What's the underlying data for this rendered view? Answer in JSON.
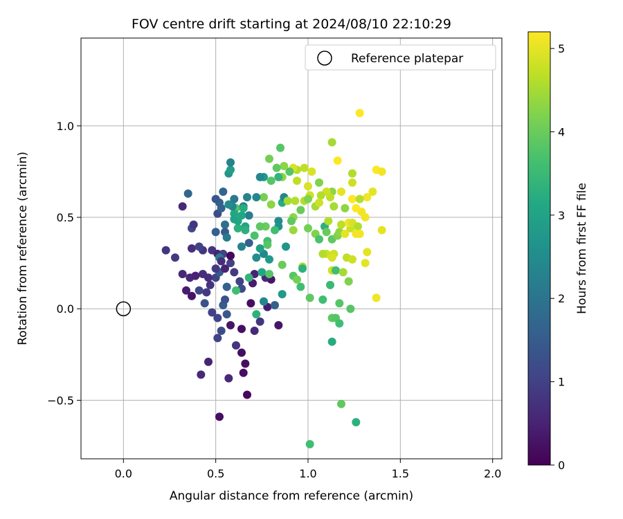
{
  "chart_data": {
    "type": "scatter",
    "title": "FOV centre drift starting at 2024/08/10 22:10:29",
    "xlabel": "Angular distance from reference (arcmin)",
    "ylabel": "Rotation from reference (arcmin)",
    "xlim": [
      -0.23,
      2.05
    ],
    "ylim": [
      -0.82,
      1.48
    ],
    "xticks": [
      0.0,
      0.5,
      1.0,
      1.5,
      2.0
    ],
    "xtick_labels": [
      "0.0",
      "0.5",
      "1.0",
      "1.5",
      "2.0"
    ],
    "yticks": [
      -0.5,
      0.0,
      0.5,
      1.0
    ],
    "ytick_labels": [
      "−0.5",
      "0.0",
      "0.5",
      "1.0"
    ],
    "grid": true,
    "legend": {
      "position": "top-right",
      "entries": [
        "Reference platepar"
      ]
    },
    "reference_point": {
      "name": "Reference platepar",
      "x": 0.0,
      "y": 0.0
    },
    "colorbar": {
      "label": "Hours from first FF file",
      "colormap": "viridis",
      "range": [
        0,
        5.2
      ],
      "ticks": [
        0,
        1,
        2,
        3,
        4,
        5
      ],
      "tick_labels": [
        "0",
        "1",
        "2",
        "3",
        "4",
        "5"
      ]
    },
    "points": [
      [
        0.52,
        -0.59,
        0.2
      ],
      [
        0.67,
        -0.47,
        0.1
      ],
      [
        0.65,
        -0.35,
        0.2
      ],
      [
        0.66,
        -0.3,
        0.2
      ],
      [
        0.64,
        -0.24,
        0.2
      ],
      [
        0.46,
        -0.29,
        0.5
      ],
      [
        0.42,
        -0.36,
        0.6
      ],
      [
        0.57,
        -0.38,
        0.6
      ],
      [
        0.61,
        -0.2,
        0.8
      ],
      [
        0.51,
        -0.16,
        1.0
      ],
      [
        0.53,
        -0.12,
        1.2
      ],
      [
        0.58,
        -0.09,
        0.3
      ],
      [
        0.64,
        -0.11,
        0.2
      ],
      [
        0.71,
        -0.12,
        0.6
      ],
      [
        0.74,
        -0.07,
        0.8
      ],
      [
        0.84,
        -0.09,
        0.3
      ],
      [
        0.69,
        0.03,
        0.2
      ],
      [
        0.78,
        0.01,
        0.4
      ],
      [
        0.8,
        0.16,
        0.3
      ],
      [
        0.77,
        0.17,
        0.6
      ],
      [
        0.71,
        0.19,
        0.5
      ],
      [
        0.7,
        0.14,
        0.4
      ],
      [
        0.63,
        0.15,
        1.0
      ],
      [
        0.64,
        0.11,
        1.2
      ],
      [
        0.56,
        0.12,
        1.6
      ],
      [
        0.54,
        0.02,
        1.5
      ],
      [
        0.56,
        -0.03,
        1.4
      ],
      [
        0.55,
        0.05,
        1.3
      ],
      [
        0.51,
        -0.05,
        1.1
      ],
      [
        0.48,
        -0.02,
        1.0
      ],
      [
        0.44,
        0.03,
        1.3
      ],
      [
        0.41,
        0.1,
        1.1
      ],
      [
        0.45,
        0.09,
        0.9
      ],
      [
        0.47,
        0.13,
        0.8
      ],
      [
        0.5,
        0.17,
        1.0
      ],
      [
        0.52,
        0.2,
        1.5
      ],
      [
        0.46,
        0.17,
        0.7
      ],
      [
        0.43,
        0.19,
        0.7
      ],
      [
        0.36,
        0.17,
        0.6
      ],
      [
        0.32,
        0.19,
        0.6
      ],
      [
        0.34,
        0.1,
        0.4
      ],
      [
        0.37,
        0.07,
        0.3
      ],
      [
        0.39,
        0.18,
        0.5
      ],
      [
        0.28,
        0.28,
        0.9
      ],
      [
        0.23,
        0.32,
        0.8
      ],
      [
        0.37,
        0.33,
        0.7
      ],
      [
        0.43,
        0.32,
        0.8
      ],
      [
        0.41,
        0.34,
        1.0
      ],
      [
        0.48,
        0.32,
        0.8
      ],
      [
        0.51,
        0.3,
        0.5
      ],
      [
        0.54,
        0.3,
        1.0
      ],
      [
        0.52,
        0.28,
        2.2
      ],
      [
        0.53,
        0.26,
        0.7
      ],
      [
        0.58,
        0.25,
        1.0
      ],
      [
        0.58,
        0.29,
        0.1
      ],
      [
        0.55,
        0.22,
        0.5
      ],
      [
        0.5,
        0.22,
        0.9
      ],
      [
        0.6,
        0.2,
        0.9
      ],
      [
        0.61,
        0.1,
        3.6
      ],
      [
        0.68,
        0.17,
        3.4
      ],
      [
        0.72,
        -0.03,
        3.3
      ],
      [
        0.76,
        0.04,
        2.4
      ],
      [
        0.82,
        0.02,
        1.6
      ],
      [
        0.86,
        0.08,
        2.8
      ],
      [
        0.68,
        0.36,
        1.6
      ],
      [
        0.64,
        0.34,
        2.3
      ],
      [
        0.72,
        0.28,
        2.5
      ],
      [
        0.76,
        0.3,
        2.4
      ],
      [
        0.74,
        0.33,
        2.9
      ],
      [
        0.78,
        0.37,
        3.6
      ],
      [
        0.78,
        0.35,
        3.8
      ],
      [
        0.75,
        0.2,
        3.1
      ],
      [
        0.79,
        0.19,
        3.8
      ],
      [
        0.79,
        0.27,
        2.8
      ],
      [
        0.88,
        0.34,
        2.7
      ],
      [
        0.86,
        0.24,
        4.0
      ],
      [
        0.92,
        0.18,
        3.8
      ],
      [
        0.94,
        0.16,
        4.1
      ],
      [
        0.97,
        0.23,
        4.5
      ],
      [
        0.96,
        0.12,
        3.6
      ],
      [
        0.97,
        0.22,
        3.3
      ],
      [
        1.01,
        0.06,
        3.9
      ],
      [
        1.08,
        0.05,
        3.6
      ],
      [
        1.12,
        0.13,
        3.5
      ],
      [
        1.13,
        -0.05,
        3.9
      ],
      [
        1.15,
        -0.05,
        3.8
      ],
      [
        1.17,
        -0.08,
        3.6
      ],
      [
        1.13,
        -0.18,
        3.2
      ],
      [
        1.17,
        0.03,
        3.8
      ],
      [
        1.23,
        0.0,
        3.8
      ],
      [
        1.18,
        -0.52,
        3.9
      ],
      [
        1.26,
        -0.62,
        3.3
      ],
      [
        1.01,
        -0.74,
        3.6
      ],
      [
        1.13,
        0.21,
        4.8
      ],
      [
        1.15,
        0.21,
        3.6
      ],
      [
        1.19,
        0.2,
        4.5
      ],
      [
        1.22,
        0.15,
        4.2
      ],
      [
        1.21,
        0.28,
        4.7
      ],
      [
        1.24,
        0.27,
        4.8
      ],
      [
        1.1,
        0.3,
        4.8
      ],
      [
        1.14,
        0.3,
        4.8
      ],
      [
        1.13,
        0.28,
        4.9
      ],
      [
        1.08,
        0.3,
        4.6
      ],
      [
        1.04,
        0.41,
        4.2
      ],
      [
        1.0,
        0.44,
        4.1
      ],
      [
        1.06,
        0.38,
        3.7
      ],
      [
        1.09,
        0.45,
        3.3
      ],
      [
        1.1,
        0.42,
        4.0
      ],
      [
        1.11,
        0.48,
        4.6
      ],
      [
        1.13,
        0.38,
        3.9
      ],
      [
        1.16,
        0.4,
        4.2
      ],
      [
        1.17,
        0.42,
        4.3
      ],
      [
        1.18,
        0.46,
        4.7
      ],
      [
        1.2,
        0.41,
        5.0
      ],
      [
        1.23,
        0.44,
        4.8
      ],
      [
        1.22,
        0.47,
        5.1
      ],
      [
        1.24,
        0.47,
        4.9
      ],
      [
        1.27,
        0.45,
        4.6
      ],
      [
        1.26,
        0.41,
        5.1
      ],
      [
        1.28,
        0.41,
        5.1
      ],
      [
        1.32,
        0.31,
        5.0
      ],
      [
        1.31,
        0.25,
        5.0
      ],
      [
        1.37,
        0.06,
        5.1
      ],
      [
        1.4,
        0.43,
        5.0
      ],
      [
        1.31,
        0.5,
        5.1
      ],
      [
        1.29,
        0.53,
        5.1
      ],
      [
        1.26,
        0.55,
        5.2
      ],
      [
        1.24,
        0.6,
        5.2
      ],
      [
        1.32,
        0.61,
        5.1
      ],
      [
        1.35,
        0.64,
        5.0
      ],
      [
        1.28,
        0.6,
        4.6
      ],
      [
        1.24,
        0.69,
        4.8
      ],
      [
        1.24,
        0.74,
        4.6
      ],
      [
        1.37,
        0.76,
        5.2
      ],
      [
        1.4,
        0.75,
        5.1
      ],
      [
        1.28,
        1.07,
        5.2
      ],
      [
        1.16,
        0.81,
        5.2
      ],
      [
        1.13,
        0.91,
        4.5
      ],
      [
        1.18,
        0.64,
        5.0
      ],
      [
        1.2,
        0.55,
        4.3
      ],
      [
        1.14,
        0.56,
        4.5
      ],
      [
        1.13,
        0.64,
        4.3
      ],
      [
        1.12,
        0.61,
        4.7
      ],
      [
        1.1,
        0.64,
        4.8
      ],
      [
        1.07,
        0.62,
        4.6
      ],
      [
        1.06,
        0.69,
        4.2
      ],
      [
        1.01,
        0.62,
        4.8
      ],
      [
        1.0,
        0.67,
        4.9
      ],
      [
        1.02,
        0.75,
        4.9
      ],
      [
        0.98,
        0.77,
        4.7
      ],
      [
        0.94,
        0.76,
        4.6
      ],
      [
        0.92,
        0.77,
        4.9
      ],
      [
        0.94,
        0.7,
        4.7
      ],
      [
        0.9,
        0.75,
        3.8
      ],
      [
        0.86,
        0.72,
        4.3
      ],
      [
        0.87,
        0.78,
        4.3
      ],
      [
        0.85,
        0.88,
        3.8
      ],
      [
        0.79,
        0.82,
        4.1
      ],
      [
        0.83,
        0.77,
        3.9
      ],
      [
        0.84,
        0.72,
        3.4
      ],
      [
        0.8,
        0.7,
        3.8
      ],
      [
        0.76,
        0.72,
        2.8
      ],
      [
        0.76,
        0.61,
        4.1
      ],
      [
        0.8,
        0.57,
        4.3
      ],
      [
        0.86,
        0.58,
        3.2
      ],
      [
        0.87,
        0.61,
        2.4
      ],
      [
        0.89,
        0.59,
        4.5
      ],
      [
        0.93,
        0.59,
        4.6
      ],
      [
        0.96,
        0.54,
        4.0
      ],
      [
        0.92,
        0.5,
        4.3
      ],
      [
        0.91,
        0.48,
        3.9
      ],
      [
        0.92,
        0.43,
        4.4
      ],
      [
        0.98,
        0.59,
        4.6
      ],
      [
        1.0,
        0.6,
        4.2
      ],
      [
        1.04,
        0.56,
        4.5
      ],
      [
        1.06,
        0.58,
        4.8
      ],
      [
        0.84,
        0.48,
        2.5
      ],
      [
        0.84,
        0.45,
        2.6
      ],
      [
        0.82,
        0.43,
        3.6
      ],
      [
        0.77,
        0.45,
        4.0
      ],
      [
        0.74,
        0.45,
        3.9
      ],
      [
        0.71,
        0.4,
        3.7
      ],
      [
        0.66,
        0.45,
        3.0
      ],
      [
        0.66,
        0.43,
        3.3
      ],
      [
        0.62,
        0.44,
        3.3
      ],
      [
        0.62,
        0.48,
        3.1
      ],
      [
        0.61,
        0.55,
        3.8
      ],
      [
        0.6,
        0.52,
        3.1
      ],
      [
        0.6,
        0.49,
        3.0
      ],
      [
        0.6,
        0.6,
        2.1
      ],
      [
        0.67,
        0.61,
        2.3
      ],
      [
        0.72,
        0.61,
        2.4
      ],
      [
        0.68,
        0.51,
        2.2
      ],
      [
        0.65,
        0.56,
        2.0
      ],
      [
        0.64,
        0.51,
        3.1
      ],
      [
        0.59,
        0.56,
        2.3
      ],
      [
        0.55,
        0.46,
        1.9
      ],
      [
        0.55,
        0.42,
        1.5
      ],
      [
        0.56,
        0.39,
        2.1
      ],
      [
        0.5,
        0.42,
        1.6
      ],
      [
        0.51,
        0.52,
        1.2
      ],
      [
        0.53,
        0.55,
        1.6
      ],
      [
        0.52,
        0.58,
        1.6
      ],
      [
        0.54,
        0.64,
        1.7
      ],
      [
        0.5,
        0.6,
        1.4
      ],
      [
        0.35,
        0.63,
        1.7
      ],
      [
        0.32,
        0.56,
        0.6
      ],
      [
        0.37,
        0.44,
        1.1
      ],
      [
        0.38,
        0.46,
        0.8
      ],
      [
        0.57,
        0.57,
        2.5
      ],
      [
        0.57,
        0.74,
        2.7
      ],
      [
        0.58,
        0.76,
        2.9
      ],
      [
        0.58,
        0.8,
        2.3
      ],
      [
        0.65,
        0.55,
        3.2
      ],
      [
        0.74,
        0.72,
        2.4
      ]
    ]
  }
}
